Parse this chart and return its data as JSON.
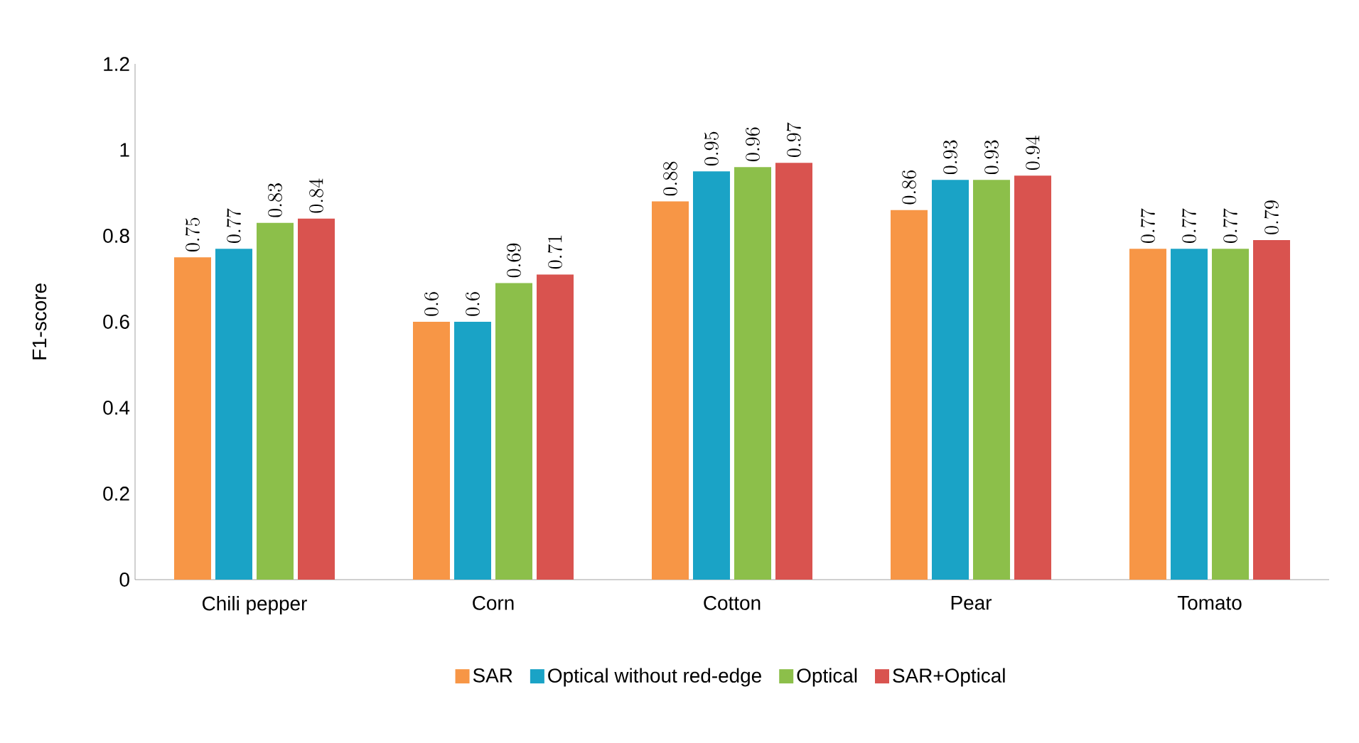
{
  "chart_data": {
    "type": "bar",
    "ylabel": "F1-score",
    "categories": [
      "Chili pepper",
      "Corn",
      "Cotton",
      "Pear",
      "Tomato"
    ],
    "series": [
      {
        "name": "SAR",
        "color": "#f79646",
        "values": [
          0.75,
          0.6,
          0.88,
          0.86,
          0.77
        ]
      },
      {
        "name": "Optical without red-edge",
        "color": "#1aa3c6",
        "values": [
          0.77,
          0.6,
          0.95,
          0.93,
          0.77
        ]
      },
      {
        "name": "Optical",
        "color": "#8cbf4a",
        "values": [
          0.83,
          0.69,
          0.96,
          0.93,
          0.77
        ]
      },
      {
        "name": "SAR+Optical",
        "color": "#d9534f",
        "values": [
          0.84,
          0.71,
          0.97,
          0.94,
          0.79
        ]
      }
    ],
    "ylim": [
      0,
      1.2
    ],
    "yticks": [
      0,
      0.2,
      0.4,
      0.6,
      0.8,
      1,
      1.2
    ],
    "data_labels": true,
    "legend": "bottom",
    "grid": false
  }
}
